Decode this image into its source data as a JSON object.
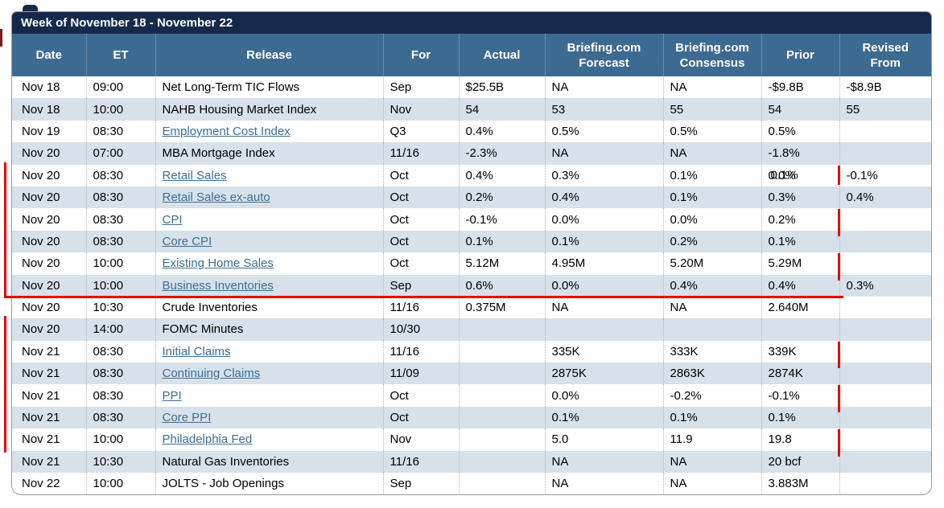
{
  "title": "Week of November 18 - November 22",
  "columns": [
    {
      "key": "date",
      "label": "Date"
    },
    {
      "key": "et",
      "label": "ET"
    },
    {
      "key": "release",
      "label": "Release"
    },
    {
      "key": "for",
      "label": "For"
    },
    {
      "key": "actual",
      "label": "Actual"
    },
    {
      "key": "forecast",
      "label": "Briefing.com\nForecast"
    },
    {
      "key": "consensus",
      "label": "Briefing.com\nConsensus"
    },
    {
      "key": "prior",
      "label": "Prior"
    },
    {
      "key": "revised_from",
      "label": "Revised\nFrom"
    }
  ],
  "rows": [
    {
      "date": "Nov 18",
      "et": "09:00",
      "release": "Net Long-Term TIC Flows",
      "is_link": false,
      "for": "Sep",
      "actual": "$25.5B",
      "forecast": "NA",
      "consensus": "NA",
      "prior": "-$9.8B",
      "revised_from": "-$8.9B"
    },
    {
      "date": "Nov 18",
      "et": "10:00",
      "release": "NAHB Housing Market Index",
      "is_link": false,
      "for": "Nov",
      "actual": "54",
      "forecast": "53",
      "consensus": "55",
      "prior": "54",
      "revised_from": "55"
    },
    {
      "date": "Nov 19",
      "et": "08:30",
      "release": "Employment Cost Index",
      "is_link": true,
      "for": "Q3",
      "actual": "0.4%",
      "forecast": "0.5%",
      "consensus": "0.5%",
      "prior": "0.5%",
      "revised_from": ""
    },
    {
      "date": "Nov 20",
      "et": "07:00",
      "release": "MBA Mortgage Index",
      "is_link": false,
      "for": "11/16",
      "actual": "-2.3%",
      "forecast": "NA",
      "consensus": "NA",
      "prior": "-1.8%",
      "revised_from": ""
    },
    {
      "date": "Nov 20",
      "et": "08:30",
      "release": "Retail Sales",
      "is_link": true,
      "for": "Oct",
      "actual": "0.4%",
      "forecast": "0.3%",
      "consensus": "0.1%",
      "prior": "0.0%",
      "prior_overlay": "0.1%",
      "revised_from": "-0.1%"
    },
    {
      "date": "Nov 20",
      "et": "08:30",
      "release": "Retail Sales ex-auto",
      "is_link": true,
      "for": "Oct",
      "actual": "0.2%",
      "forecast": "0.4%",
      "consensus": "0.1%",
      "prior": "0.3%",
      "revised_from": "0.4%"
    },
    {
      "date": "Nov 20",
      "et": "08:30",
      "release": "CPI",
      "is_link": true,
      "for": "Oct",
      "actual": "-0.1%",
      "forecast": "0.0%",
      "consensus": "0.0%",
      "prior": "0.2%",
      "revised_from": ""
    },
    {
      "date": "Nov 20",
      "et": "08:30",
      "release": "Core CPI",
      "is_link": true,
      "for": "Oct",
      "actual": "0.1%",
      "forecast": "0.1%",
      "consensus": "0.2%",
      "prior": "0.1%",
      "revised_from": ""
    },
    {
      "date": "Nov 20",
      "et": "10:00",
      "release": "Existing Home Sales",
      "is_link": true,
      "for": "Oct",
      "actual": "5.12M",
      "forecast": "4.95M",
      "consensus": "5.20M",
      "prior": "5.29M",
      "revised_from": ""
    },
    {
      "date": "Nov 20",
      "et": "10:00",
      "release": "Business Inventories",
      "is_link": true,
      "for": "Sep",
      "actual": "0.6%",
      "forecast": "0.0%",
      "consensus": "0.4%",
      "prior": "0.4%",
      "revised_from": "0.3%"
    },
    {
      "date": "Nov 20",
      "et": "10:30",
      "release": "Crude Inventories",
      "is_link": false,
      "for": "11/16",
      "actual": "0.375M",
      "forecast": "NA",
      "consensus": "NA",
      "prior": "2.640M",
      "revised_from": ""
    },
    {
      "date": "Nov 20",
      "et": "14:00",
      "release": "FOMC Minutes",
      "is_link": false,
      "for": "10/30",
      "actual": "",
      "forecast": "",
      "consensus": "",
      "prior": "",
      "revised_from": ""
    },
    {
      "date": "Nov 21",
      "et": "08:30",
      "release": "Initial Claims",
      "is_link": true,
      "for": "11/16",
      "actual": "",
      "forecast": "335K",
      "consensus": "333K",
      "prior": "339K",
      "revised_from": ""
    },
    {
      "date": "Nov 21",
      "et": "08:30",
      "release": "Continuing Claims",
      "is_link": true,
      "for": "11/09",
      "actual": "",
      "forecast": "2875K",
      "consensus": "2863K",
      "prior": "2874K",
      "revised_from": ""
    },
    {
      "date": "Nov 21",
      "et": "08:30",
      "release": "PPI",
      "is_link": true,
      "for": "Oct",
      "actual": "",
      "forecast": "0.0%",
      "consensus": "-0.2%",
      "prior": "-0.1%",
      "revised_from": ""
    },
    {
      "date": "Nov 21",
      "et": "08:30",
      "release": "Core PPI",
      "is_link": true,
      "for": "Oct",
      "actual": "",
      "forecast": "0.1%",
      "consensus": "0.1%",
      "prior": "0.1%",
      "revised_from": ""
    },
    {
      "date": "Nov 21",
      "et": "10:00",
      "release": "Philadelphia Fed",
      "is_link": true,
      "for": "Nov",
      "actual": "",
      "forecast": "5.0",
      "consensus": "11.9",
      "prior": "19.8",
      "revised_from": ""
    },
    {
      "date": "Nov 21",
      "et": "10:30",
      "release": "Natural Gas Inventories",
      "is_link": false,
      "for": "11/16",
      "actual": "",
      "forecast": "NA",
      "consensus": "NA",
      "prior": "20 bcf",
      "revised_from": ""
    },
    {
      "date": "Nov 22",
      "et": "10:00",
      "release": "JOLTS - Job Openings",
      "is_link": false,
      "for": "Sep",
      "actual": "",
      "forecast": "NA",
      "consensus": "NA",
      "prior": "3.883M",
      "revised_from": ""
    }
  ],
  "annotations": {
    "color": "#ee0000",
    "left_brackets": [
      {
        "from_row": 5,
        "to_row": 10,
        "has_bottom_line": true
      },
      {
        "from_row": 12,
        "to_row": 17,
        "has_bottom_line": false
      }
    ],
    "revised_column_tick_rows": [
      5,
      7,
      9,
      13,
      15,
      17
    ]
  },
  "colors": {
    "title_bar_bg": "#15294a",
    "header_bg": "#3d6a90",
    "row_alt_bg": "#d7e1ea",
    "link_color": "#3e6e94",
    "body_text": "#000000",
    "annotation_red": "#ee0000",
    "border_gray": "#9a9a9a",
    "edge_artifact": "#7d1b1b"
  }
}
